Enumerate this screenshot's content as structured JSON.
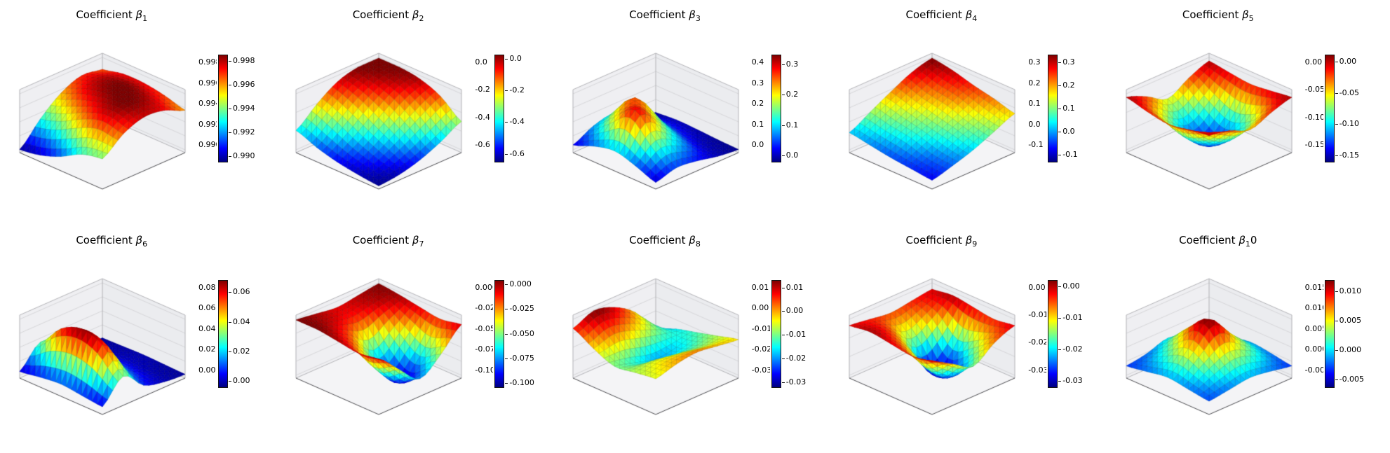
{
  "figure": {
    "background": "#ffffff",
    "subplot_rows": 2,
    "subplot_cols": 5,
    "colormap": "jet"
  },
  "chart_data": [
    {
      "type": "surface",
      "title": {
        "prefix": "Coefficient ",
        "symbol": "β",
        "sub": "1",
        "suffix": ""
      },
      "colormap": "jet",
      "zlim": [
        0.9895,
        0.9985
      ],
      "axis_ticks": [
        "0.998",
        "0.996",
        "0.994",
        "0.992",
        "0.990"
      ],
      "colorbar_ticks": [
        {
          "label": "0.998",
          "value": 0.998
        },
        {
          "label": "0.996",
          "value": 0.996
        },
        {
          "label": "0.994",
          "value": 0.994
        },
        {
          "label": "0.992",
          "value": 0.992
        },
        {
          "label": "0.990",
          "value": 0.99
        }
      ],
      "z_grid": [
        [
          0.5,
          0.78,
          0.92,
          0.88,
          0.72
        ],
        [
          0.42,
          0.85,
          1.0,
          0.96,
          0.82
        ],
        [
          0.22,
          0.72,
          0.95,
          1.0,
          0.88
        ],
        [
          0.08,
          0.52,
          0.85,
          0.95,
          0.88
        ],
        [
          0.02,
          0.4,
          0.7,
          0.85,
          0.8
        ]
      ]
    },
    {
      "type": "surface",
      "title": {
        "prefix": "Coefficient ",
        "symbol": "β",
        "sub": "2",
        "suffix": ""
      },
      "colormap": "jet",
      "zlim": [
        -0.65,
        0.02
      ],
      "axis_ticks": [
        "0.0",
        "-0.2",
        "-0.4",
        "-0.6"
      ],
      "colorbar_ticks": [
        {
          "label": "0.0",
          "value": 0.0
        },
        {
          "label": "-0.2",
          "value": -0.2
        },
        {
          "label": "-0.4",
          "value": -0.4
        },
        {
          "label": "-0.6",
          "value": -0.6
        }
      ],
      "z_grid": [
        [
          0.02,
          0.06,
          0.16,
          0.32,
          0.52
        ],
        [
          0.06,
          0.16,
          0.36,
          0.6,
          0.8
        ],
        [
          0.12,
          0.3,
          0.58,
          0.84,
          0.95
        ],
        [
          0.22,
          0.5,
          0.78,
          0.95,
          1.0
        ],
        [
          0.36,
          0.66,
          0.9,
          1.0,
          1.0
        ]
      ]
    },
    {
      "type": "surface",
      "title": {
        "prefix": "Coefficient ",
        "symbol": "β",
        "sub": "3",
        "suffix": ""
      },
      "colormap": "jet",
      "zlim": [
        -0.02,
        0.33
      ],
      "axis_ticks": [
        "0.4",
        "0.3",
        "0.2",
        "0.1",
        "0.0"
      ],
      "colorbar_ticks": [
        {
          "label": "0.3",
          "value": 0.3
        },
        {
          "label": "0.2",
          "value": 0.2
        },
        {
          "label": "0.1",
          "value": 0.1
        },
        {
          "label": "0.0",
          "value": 0.0
        }
      ],
      "z_grid": [
        [
          0.08,
          0.18,
          0.14,
          0.06,
          0.02
        ],
        [
          0.22,
          0.5,
          0.34,
          0.1,
          0.03
        ],
        [
          0.32,
          0.88,
          0.58,
          0.18,
          0.05
        ],
        [
          0.24,
          0.6,
          0.78,
          0.24,
          0.06
        ],
        [
          0.1,
          0.28,
          0.34,
          0.14,
          0.03
        ]
      ]
    },
    {
      "type": "surface",
      "title": {
        "prefix": "Coefficient ",
        "symbol": "β",
        "sub": "4",
        "suffix": ""
      },
      "colormap": "jet",
      "zlim": [
        -0.13,
        0.33
      ],
      "axis_ticks": [
        "0.3",
        "0.2",
        "0.1",
        "0.0",
        "-0.1"
      ],
      "colorbar_ticks": [
        {
          "label": "0.3",
          "value": 0.3
        },
        {
          "label": "0.2",
          "value": 0.2
        },
        {
          "label": "0.1",
          "value": 0.1
        },
        {
          "label": "0.0",
          "value": 0.0
        },
        {
          "label": "-0.1",
          "value": -0.1
        }
      ],
      "z_grid": [
        [
          0.12,
          0.22,
          0.34,
          0.5,
          0.66
        ],
        [
          0.16,
          0.26,
          0.44,
          0.58,
          0.76
        ],
        [
          0.2,
          0.38,
          0.52,
          0.72,
          0.84
        ],
        [
          0.26,
          0.44,
          0.62,
          0.78,
          0.94
        ],
        [
          0.32,
          0.52,
          0.72,
          0.9,
          1.0
        ]
      ]
    },
    {
      "type": "surface",
      "title": {
        "prefix": "Coefficient ",
        "symbol": "β",
        "sub": "5",
        "suffix": ""
      },
      "colormap": "jet",
      "zlim": [
        -0.16,
        0.01
      ],
      "axis_ticks": [
        "0.00",
        "-0.05",
        "-0.10",
        "-0.15"
      ],
      "colorbar_ticks": [
        {
          "label": "0.00",
          "value": 0.0
        },
        {
          "label": "-0.05",
          "value": -0.05
        },
        {
          "label": "-0.10",
          "value": -0.1
        },
        {
          "label": "-0.15",
          "value": -0.15
        }
      ],
      "z_grid": [
        [
          0.92,
          0.84,
          0.7,
          0.84,
          0.95
        ],
        [
          0.86,
          0.52,
          0.34,
          0.52,
          0.9
        ],
        [
          0.8,
          0.36,
          0.1,
          0.36,
          0.86
        ],
        [
          0.86,
          0.52,
          0.3,
          0.55,
          0.9
        ],
        [
          0.95,
          0.8,
          0.6,
          0.8,
          0.95
        ]
      ]
    },
    {
      "type": "surface",
      "title": {
        "prefix": "Coefficient ",
        "symbol": "β",
        "sub": "6",
        "suffix": ""
      },
      "colormap": "jet",
      "zlim": [
        -0.004,
        0.068
      ],
      "axis_ticks": [
        "0.08",
        "0.06",
        "0.04",
        "0.02",
        "0.00"
      ],
      "colorbar_ticks": [
        {
          "label": "0.06",
          "value": 0.06
        },
        {
          "label": "0.04",
          "value": 0.04
        },
        {
          "label": "0.02",
          "value": 0.02
        },
        {
          "label": "0.00",
          "value": 0.0
        }
      ],
      "z_grid": [
        [
          0.1,
          0.48,
          0.16,
          0.06,
          0.03
        ],
        [
          0.14,
          0.88,
          0.3,
          0.08,
          0.04
        ],
        [
          0.18,
          1.0,
          0.36,
          0.1,
          0.05
        ],
        [
          0.14,
          0.84,
          0.3,
          0.08,
          0.04
        ],
        [
          0.08,
          0.44,
          0.2,
          0.06,
          0.03
        ]
      ]
    },
    {
      "type": "surface",
      "title": {
        "prefix": "Coefficient ",
        "symbol": "β",
        "sub": "7",
        "suffix": ""
      },
      "colormap": "jet",
      "zlim": [
        -0.104,
        0.004
      ],
      "axis_ticks": [
        "0.000",
        "-0.025",
        "-0.050",
        "-0.075",
        "-0.100"
      ],
      "colorbar_ticks": [
        {
          "label": "0.000",
          "value": 0.0
        },
        {
          "label": "-0.025",
          "value": -0.025
        },
        {
          "label": "-0.050",
          "value": -0.05
        },
        {
          "label": "-0.075",
          "value": -0.075
        },
        {
          "label": "-0.100",
          "value": -0.1
        }
      ],
      "z_grid": [
        [
          0.95,
          0.6,
          0.28,
          0.55,
          0.92
        ],
        [
          0.9,
          0.4,
          0.05,
          0.35,
          0.85
        ],
        [
          0.95,
          0.7,
          0.3,
          0.6,
          0.9
        ],
        [
          1.0,
          0.9,
          0.8,
          0.9,
          0.96
        ],
        [
          1.0,
          0.95,
          0.9,
          0.95,
          1.0
        ]
      ]
    },
    {
      "type": "surface",
      "title": {
        "prefix": "Coefficient ",
        "symbol": "β",
        "sub": "8",
        "suffix": ""
      },
      "colormap": "jet",
      "zlim": [
        -0.032,
        0.013
      ],
      "axis_ticks": [
        "0.01",
        "0.00",
        "-0.01",
        "-0.02",
        "-0.03"
      ],
      "colorbar_ticks": [
        {
          "label": "0.01",
          "value": 0.01
        },
        {
          "label": "0.00",
          "value": 0.0
        },
        {
          "label": "-0.01",
          "value": -0.01
        },
        {
          "label": "-0.02",
          "value": -0.02
        },
        {
          "label": "-0.03",
          "value": -0.03
        }
      ],
      "z_grid": [
        [
          0.6,
          0.7,
          0.75,
          0.7,
          0.65
        ],
        [
          0.55,
          0.6,
          0.55,
          0.5,
          0.55
        ],
        [
          0.5,
          0.4,
          0.3,
          0.35,
          0.45
        ],
        [
          0.65,
          0.75,
          0.65,
          0.5,
          0.35
        ],
        [
          0.85,
          1.0,
          0.9,
          0.65,
          0.2
        ]
      ]
    },
    {
      "type": "surface",
      "title": {
        "prefix": "Coefficient ",
        "symbol": "β",
        "sub": "9",
        "suffix": ""
      },
      "colormap": "jet",
      "zlim": [
        -0.032,
        0.002
      ],
      "axis_ticks": [
        "0.00",
        "-0.01",
        "-0.02",
        "-0.03"
      ],
      "colorbar_ticks": [
        {
          "label": "0.00",
          "value": 0.0
        },
        {
          "label": "-0.01",
          "value": -0.01
        },
        {
          "label": "-0.02",
          "value": -0.02
        },
        {
          "label": "-0.03",
          "value": -0.03
        }
      ],
      "z_grid": [
        [
          0.9,
          0.7,
          0.5,
          0.75,
          0.9
        ],
        [
          0.85,
          0.4,
          0.15,
          0.5,
          0.85
        ],
        [
          0.9,
          0.6,
          0.05,
          0.3,
          0.9
        ],
        [
          0.95,
          0.8,
          0.5,
          0.7,
          0.95
        ],
        [
          0.9,
          0.85,
          0.8,
          0.85,
          0.9
        ]
      ]
    },
    {
      "type": "surface",
      "title": {
        "prefix": "Coefficient ",
        "symbol": "β",
        "sub": "1",
        "suffix": "0"
      },
      "colormap": "jet",
      "zlim": [
        -0.0062,
        0.0118
      ],
      "axis_ticks": [
        "0.015",
        "0.010",
        "0.005",
        "0.000",
        "-0.005"
      ],
      "colorbar_ticks": [
        {
          "label": "0.010",
          "value": 0.01
        },
        {
          "label": "0.005",
          "value": 0.005
        },
        {
          "label": "0.000",
          "value": 0.0
        },
        {
          "label": "-0.005",
          "value": -0.005
        }
      ],
      "z_grid": [
        [
          0.2,
          0.25,
          0.3,
          0.25,
          0.18
        ],
        [
          0.25,
          0.45,
          0.6,
          0.45,
          0.24
        ],
        [
          0.3,
          0.65,
          1.0,
          0.6,
          0.28
        ],
        [
          0.24,
          0.45,
          0.7,
          0.45,
          0.2
        ],
        [
          0.18,
          0.24,
          0.35,
          0.24,
          0.15
        ]
      ]
    }
  ]
}
